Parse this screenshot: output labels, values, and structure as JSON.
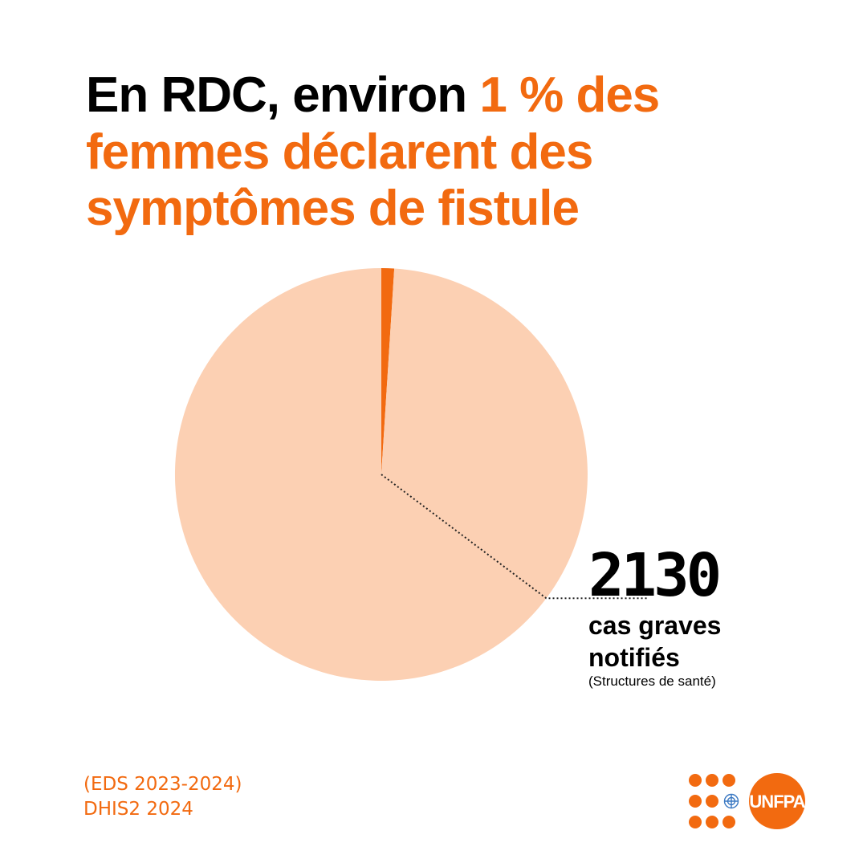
{
  "title": {
    "prefix": "En RDC, environ ",
    "highlight": "1 % des femmes déclarent des symptômes de fistule"
  },
  "chart_data": {
    "type": "pie",
    "slices": [
      {
        "label": "femmes déclarant des symptômes de fistule",
        "value": 1,
        "color": "#f26a10"
      },
      {
        "label": "",
        "value": 99,
        "color": "#fcd0b3"
      }
    ]
  },
  "callout": {
    "number": "2130",
    "label_line1": "cas graves",
    "label_line2": "notifiés",
    "note": "(Structures de santé)"
  },
  "sources": [
    "(EDS 2023-2024)",
    "DHIS2 2024"
  ],
  "logo": {
    "text": "UNFPA",
    "color": "#f26a10"
  },
  "colors": {
    "accent": "#f26a10",
    "pie_light": "#fcd0b3",
    "text": "#000000"
  }
}
